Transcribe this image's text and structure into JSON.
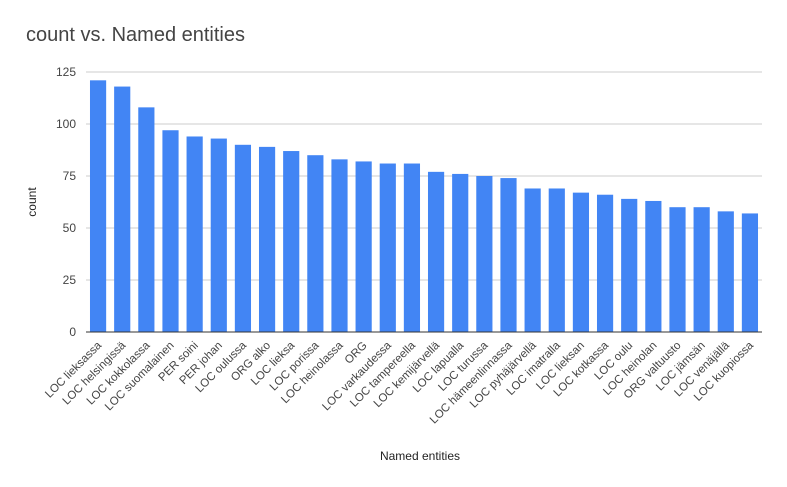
{
  "chart_data": {
    "type": "bar",
    "title": "count vs. Named entities",
    "xlabel": "Named entities",
    "ylabel": "count",
    "ylim": [
      0,
      125
    ],
    "yticks": [
      0,
      25,
      50,
      75,
      100,
      125
    ],
    "grid": true,
    "legend": "none",
    "bar_color": "#4285f4",
    "categories": [
      "LOC lieksassa",
      "LOC helsingissä",
      "LOC kokkolassa",
      "LOC suomalainen",
      "PER soini",
      "PER johan",
      "LOC oulussa",
      "ORG alko",
      "LOC lieksa",
      "LOC porissa",
      "LOC heinolassa",
      "ORG",
      "LOC varkaudessa",
      "LOC tampereella",
      "LOC kemijärvellä",
      "LOC lapualla",
      "LOC turussa",
      "LOC hämeenlinnassa",
      "LOC pyhäjärvellä",
      "LOC imatralla",
      "LOC lieksan",
      "LOC kotkassa",
      "LOC oulu",
      "LOC heinolan",
      "ORG valtuusto",
      "LOC jämsän",
      "LOC venäjällä",
      "LOC kuopiossa"
    ],
    "values": [
      121,
      118,
      108,
      97,
      94,
      93,
      90,
      89,
      87,
      85,
      83,
      82,
      81,
      81,
      77,
      76,
      75,
      74,
      69,
      69,
      67,
      66,
      64,
      63,
      60,
      60,
      58,
      57
    ]
  }
}
